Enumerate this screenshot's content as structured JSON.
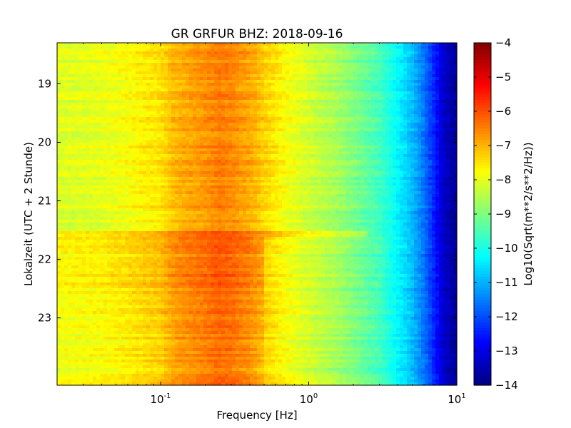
{
  "chart_data": {
    "type": "heatmap",
    "title": "GR GRFUR BHZ: 2018-09-16",
    "xlabel": "Frequency [Hz]",
    "ylabel": "Lokalzeit (UTC + 2 Stunde)",
    "x_scale": "log",
    "xlim": [
      0.02,
      10
    ],
    "x_ticks": [
      {
        "value": 0.1,
        "base": "10",
        "exp": "-1"
      },
      {
        "value": 1,
        "base": "10",
        "exp": "0"
      },
      {
        "value": 10,
        "base": "10",
        "exp": "1"
      }
    ],
    "ylim": [
      18.3,
      24.15
    ],
    "y_inverted": true,
    "y_ticks": [
      {
        "value": 19,
        "label": "19"
      },
      {
        "value": 20,
        "label": "20"
      },
      {
        "value": 21,
        "label": "21"
      },
      {
        "value": 22,
        "label": "22"
      },
      {
        "value": 23,
        "label": "23"
      }
    ],
    "colorbar": {
      "label": "Log10(Sqrt(m**2/s**2/Hz))",
      "colormap": "jet",
      "range": [
        -14,
        -4
      ],
      "ticks": [
        {
          "value": -4,
          "label": "−4"
        },
        {
          "value": -5,
          "label": "−5"
        },
        {
          "value": -6,
          "label": "−6"
        },
        {
          "value": -7,
          "label": "−7"
        },
        {
          "value": -8,
          "label": "−8"
        },
        {
          "value": -9,
          "label": "−9"
        },
        {
          "value": -10,
          "label": "−10"
        },
        {
          "value": -11,
          "label": "−11"
        },
        {
          "value": -12,
          "label": "−12"
        },
        {
          "value": -13,
          "label": "−13"
        },
        {
          "value": -14,
          "label": "−14"
        }
      ]
    },
    "frequency_profile": [
      {
        "freq": 0.02,
        "value": -8.1
      },
      {
        "freq": 0.04,
        "value": -8.0
      },
      {
        "freq": 0.06,
        "value": -7.8
      },
      {
        "freq": 0.08,
        "value": -7.6
      },
      {
        "freq": 0.1,
        "value": -7.5
      },
      {
        "freq": 0.12,
        "value": -7.1
      },
      {
        "freq": 0.15,
        "value": -6.9
      },
      {
        "freq": 0.2,
        "value": -6.7
      },
      {
        "freq": 0.25,
        "value": -6.5
      },
      {
        "freq": 0.3,
        "value": -6.6
      },
      {
        "freq": 0.4,
        "value": -6.9
      },
      {
        "freq": 0.5,
        "value": -7.3
      },
      {
        "freq": 0.7,
        "value": -7.8
      },
      {
        "freq": 1.0,
        "value": -8.2
      },
      {
        "freq": 1.5,
        "value": -8.6
      },
      {
        "freq": 2.0,
        "value": -9.0
      },
      {
        "freq": 3.0,
        "value": -9.6
      },
      {
        "freq": 4.0,
        "value": -10.3
      },
      {
        "freq": 5.0,
        "value": -10.9
      },
      {
        "freq": 6.0,
        "value": -11.6
      },
      {
        "freq": 7.0,
        "value": -12.4
      },
      {
        "freq": 8.0,
        "value": -13.2
      },
      {
        "freq": 10.0,
        "value": -13.8
      }
    ],
    "time_anomalies": [
      {
        "start": 21.5,
        "end": 21.6,
        "delta": 0.6,
        "max_freq": 2.5
      },
      {
        "start": 21.6,
        "end": 22.6,
        "delta": 0.4,
        "max_freq": 0.5
      },
      {
        "start": 22.6,
        "end": 24.15,
        "delta": 0.2,
        "max_freq": 0.5
      }
    ]
  }
}
